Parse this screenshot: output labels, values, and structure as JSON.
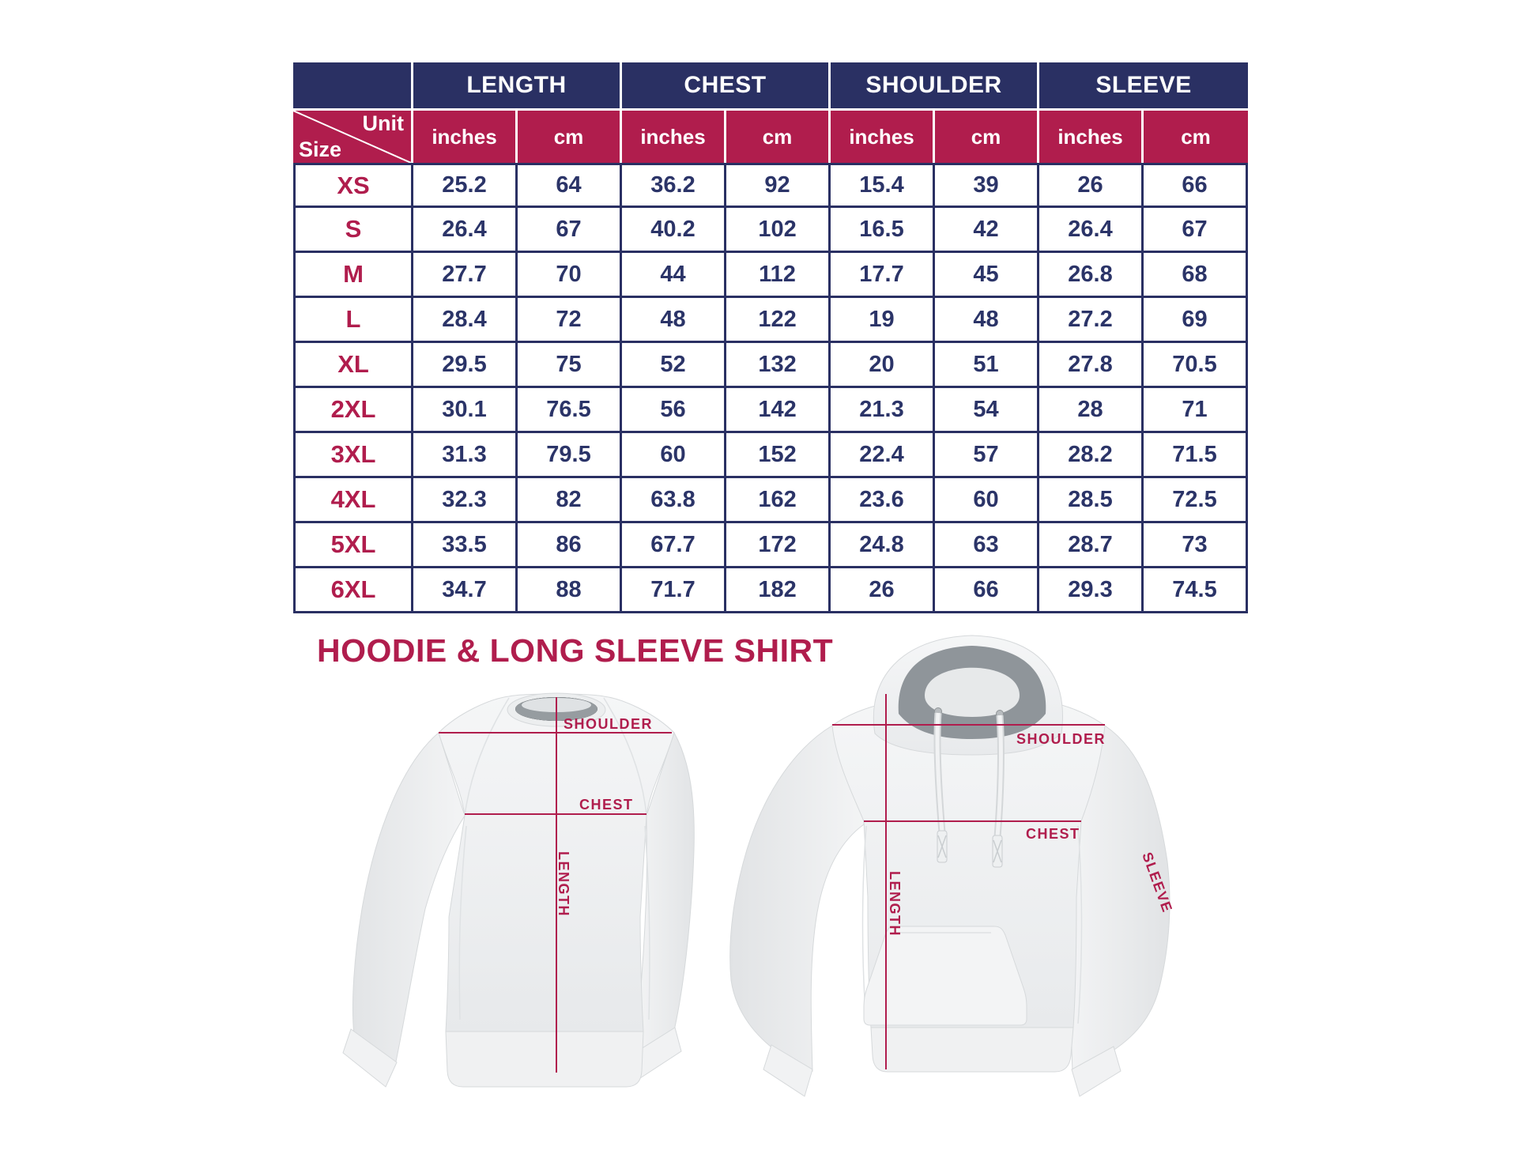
{
  "colors": {
    "navy_header": "#2a3063",
    "crimson": "#b01d4d",
    "value_text": "#2b3468",
    "white": "#ffffff"
  },
  "size_chart": {
    "corner": {
      "top_label": "Unit",
      "bottom_label": "Size"
    },
    "measure_headers": [
      "LENGTH",
      "CHEST",
      "SHOULDER",
      "SLEEVE"
    ],
    "unit_headers": [
      "inches",
      "cm",
      "inches",
      "cm",
      "inches",
      "cm",
      "inches",
      "cm"
    ]
  },
  "section": {
    "title": "HOODIE & LONG SLEEVE SHIRT"
  },
  "measurement_labels": {
    "shoulder": "SHOULDER",
    "chest": "CHEST",
    "length": "LENGTH",
    "sleeve": "SLEEVE"
  },
  "chart_data": {
    "type": "table",
    "title": "HOODIE & LONG SLEEVE SHIRT",
    "column_groups": [
      "LENGTH",
      "CHEST",
      "SHOULDER",
      "SLEEVE"
    ],
    "units_per_group": [
      "inches",
      "cm"
    ],
    "columns": [
      "Size",
      "LENGTH (inches)",
      "LENGTH (cm)",
      "CHEST (inches)",
      "CHEST (cm)",
      "SHOULDER (inches)",
      "SHOULDER (cm)",
      "SLEEVE (inches)",
      "SLEEVE (cm)"
    ],
    "rows": [
      [
        "XS",
        25.2,
        64,
        36.2,
        92,
        15.4,
        39,
        26,
        66
      ],
      [
        "S",
        26.4,
        67,
        40.2,
        102,
        16.5,
        42,
        26.4,
        67
      ],
      [
        "M",
        27.7,
        70,
        44,
        112,
        17.7,
        45,
        26.8,
        68
      ],
      [
        "L",
        28.4,
        72,
        48,
        122,
        19,
        48,
        27.2,
        69
      ],
      [
        "XL",
        29.5,
        75,
        52,
        132,
        20,
        51,
        27.8,
        70.5
      ],
      [
        "2XL",
        30.1,
        76.5,
        56,
        142,
        21.3,
        54,
        28,
        71
      ],
      [
        "3XL",
        31.3,
        79.5,
        60,
        152,
        22.4,
        57,
        28.2,
        71.5
      ],
      [
        "4XL",
        32.3,
        82,
        63.8,
        162,
        23.6,
        60,
        28.5,
        72.5
      ],
      [
        "5XL",
        33.5,
        86,
        67.7,
        172,
        24.8,
        63,
        28.7,
        73
      ],
      [
        "6XL",
        34.7,
        88,
        71.7,
        182,
        26,
        66,
        29.3,
        74.5
      ]
    ]
  }
}
